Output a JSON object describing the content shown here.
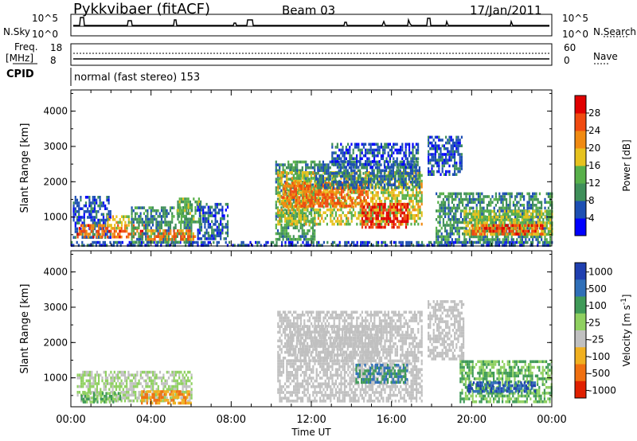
{
  "header": {
    "title": "Pykkvibaer (fitACF)",
    "beam": "Beam 03",
    "date": "17/Jan/2011"
  },
  "noise_panel": {
    "left_label": "N.Sky",
    "left_ticks": [
      "10^5",
      "10^0"
    ],
    "right_label": "N.Search",
    "right_ticks": [
      "10^5",
      "10^0"
    ]
  },
  "freq_panel": {
    "left_label_line1": "Freq.",
    "left_label_line2": "[MHz]",
    "left_ticks": [
      "18",
      "8"
    ],
    "right_label": "Nave",
    "right_ticks": [
      "60",
      "0"
    ]
  },
  "cpid_panel": {
    "label": "CPID",
    "value": "normal (fast stereo) 153"
  },
  "chart_data": [
    {
      "type": "heatmap",
      "title": "",
      "ylabel": "Slant Range [km]",
      "ylim": [
        180,
        4600
      ],
      "yticks": [
        "1000",
        "2000",
        "3000",
        "4000"
      ],
      "xlim": [
        0,
        24
      ],
      "colorbar": {
        "label": "Power [dB]",
        "ticks": [
          "4",
          "8",
          "12",
          "16",
          "20",
          "24",
          "28"
        ],
        "range": [
          0,
          32
        ],
        "colors": [
          "#0000ff",
          "#1d4fb3",
          "#3f8f5a",
          "#58b04a",
          "#e6c21e",
          "#f08a12",
          "#f04a10",
          "#e00000"
        ]
      },
      "regions": [
        {
          "t0": 0.0,
          "t1": 24.0,
          "r0": 190,
          "r1": 320,
          "value": 6
        },
        {
          "t0": 0.1,
          "t1": 2.0,
          "r0": 400,
          "r1": 1600,
          "value": 6
        },
        {
          "t0": 0.3,
          "t1": 3.7,
          "r0": 450,
          "r1": 800,
          "value": 25
        },
        {
          "t0": 1.8,
          "t1": 3.0,
          "r0": 650,
          "r1": 1050,
          "value": 17
        },
        {
          "t0": 3.0,
          "t1": 6.0,
          "r0": 300,
          "r1": 1300,
          "value": 10
        },
        {
          "t0": 3.8,
          "t1": 6.2,
          "r0": 350,
          "r1": 650,
          "value": 23
        },
        {
          "t0": 5.3,
          "t1": 6.5,
          "r0": 900,
          "r1": 1550,
          "value": 13
        },
        {
          "t0": 6.3,
          "t1": 7.8,
          "r0": 350,
          "r1": 1400,
          "value": 7
        },
        {
          "t0": 10.2,
          "t1": 12.2,
          "r0": 350,
          "r1": 2600,
          "value": 11
        },
        {
          "t0": 10.3,
          "t1": 17.5,
          "r0": 800,
          "r1": 2300,
          "value": 17
        },
        {
          "t0": 10.5,
          "t1": 14.8,
          "r0": 1300,
          "r1": 2000,
          "value": 24
        },
        {
          "t0": 12.2,
          "t1": 17.4,
          "r0": 1800,
          "r1": 2600,
          "value": 8
        },
        {
          "t0": 13.0,
          "t1": 17.3,
          "r0": 2400,
          "r1": 3100,
          "value": 6
        },
        {
          "t0": 14.5,
          "t1": 16.8,
          "r0": 700,
          "r1": 1400,
          "value": 29
        },
        {
          "t0": 18.2,
          "t1": 24.0,
          "r0": 300,
          "r1": 1700,
          "value": 10
        },
        {
          "t0": 19.6,
          "t1": 24.0,
          "r0": 500,
          "r1": 1200,
          "value": 16
        },
        {
          "t0": 20.0,
          "t1": 23.5,
          "r0": 480,
          "r1": 800,
          "value": 26
        },
        {
          "t0": 17.8,
          "t1": 19.5,
          "r0": 2200,
          "r1": 3300,
          "value": 6
        }
      ]
    },
    {
      "type": "heatmap",
      "title": "",
      "ylabel": "Slant Range [km]",
      "xlabel": "Time UT",
      "ylim": [
        180,
        4600
      ],
      "yticks": [
        "1000",
        "2000",
        "3000",
        "4000"
      ],
      "xticks": [
        "00:00",
        "04:00",
        "08:00",
        "12:00",
        "16:00",
        "20:00",
        "00:00"
      ],
      "xlim": [
        0,
        24
      ],
      "colorbar": {
        "label": "Velocity [m s^-1]",
        "ticks": [
          "1000",
          "500",
          "100",
          "25",
          "-25",
          "-100",
          "-500",
          "-1000"
        ],
        "colors": [
          "#1f3fb0",
          "#2f6fb8",
          "#3f9a58",
          "#8fd060",
          "#c0c0c0",
          "#f0b020",
          "#f07010",
          "#e02000"
        ]
      },
      "regions": [
        {
          "t0": 0.3,
          "t1": 6.0,
          "r0": 350,
          "r1": 1200,
          "value": 25
        },
        {
          "t0": 3.5,
          "t1": 6.0,
          "r0": 300,
          "r1": 650,
          "value": -100
        },
        {
          "t0": 0.5,
          "t1": 2.5,
          "r0": 350,
          "r1": 600,
          "value": 100
        },
        {
          "t0": 10.3,
          "t1": 17.5,
          "r0": 350,
          "r1": 2900,
          "value": 0
        },
        {
          "t0": 10.8,
          "t1": 15.5,
          "r0": 1500,
          "r1": 2500,
          "value": 0
        },
        {
          "t0": 14.2,
          "t1": 16.8,
          "r0": 850,
          "r1": 1400,
          "value": 500
        },
        {
          "t0": 17.8,
          "t1": 19.6,
          "r0": 1500,
          "r1": 3200,
          "value": 0
        },
        {
          "t0": 19.4,
          "t1": 24.0,
          "r0": 350,
          "r1": 1500,
          "value": 100
        },
        {
          "t0": 19.8,
          "t1": 23.2,
          "r0": 600,
          "r1": 900,
          "value": 1000
        }
      ]
    }
  ]
}
